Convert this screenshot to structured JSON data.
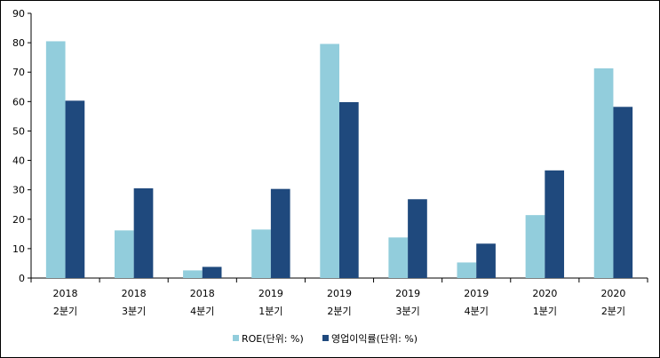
{
  "chart_data": {
    "type": "bar",
    "categories": [
      [
        "2018",
        "2분기"
      ],
      [
        "2018",
        "3분기"
      ],
      [
        "2018",
        "4분기"
      ],
      [
        "2019",
        "1분기"
      ],
      [
        "2019",
        "2분기"
      ],
      [
        "2019",
        "3분기"
      ],
      [
        "2019",
        "4분기"
      ],
      [
        "2020",
        "1분기"
      ],
      [
        "2020",
        "2분기"
      ]
    ],
    "series": [
      {
        "name": "ROE(단위: %)",
        "color": "#92cddc",
        "values": [
          80.5,
          16.2,
          2.6,
          16.5,
          79.6,
          13.8,
          5.3,
          21.4,
          71.3
        ]
      },
      {
        "name": "영업이익률(단위: %)",
        "color": "#1f497d",
        "values": [
          60.3,
          30.5,
          3.8,
          30.3,
          59.8,
          26.8,
          11.7,
          36.6,
          58.2
        ]
      }
    ],
    "ylim": [
      0,
      90
    ],
    "yticks": [
      0,
      10,
      20,
      30,
      40,
      50,
      60,
      70,
      80,
      90
    ],
    "grid": false,
    "legend": "bottom",
    "title": "",
    "xlabel": "",
    "ylabel": ""
  }
}
